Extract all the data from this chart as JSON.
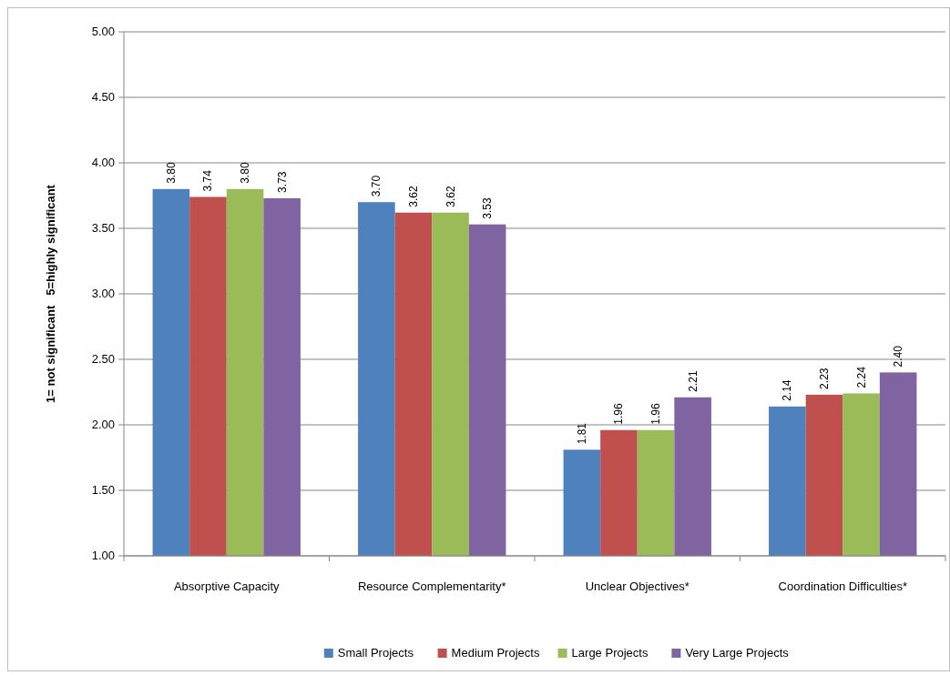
{
  "chart_data": {
    "type": "bar",
    "ylabel": "1= not significant   5=highly significant",
    "categories": [
      "Absorptive Capacity",
      "Resource Complementarity*",
      "Unclear Objectives*",
      "Coordination Difficulties*"
    ],
    "series": [
      {
        "name": "Small Projects",
        "color": "#4f81bd",
        "values": [
          3.8,
          3.7,
          1.81,
          2.14
        ],
        "value_labels": [
          "3.80",
          "3.70",
          "1.81",
          "2.14"
        ]
      },
      {
        "name": "Medium Projects",
        "color": "#c0504d",
        "values": [
          3.74,
          3.62,
          1.96,
          2.23
        ],
        "value_labels": [
          "3.74",
          "3.62",
          "1.96",
          "2.23"
        ]
      },
      {
        "name": "Large Projects",
        "color": "#9bbb59",
        "values": [
          3.8,
          3.62,
          1.96,
          2.24
        ],
        "value_labels": [
          "3.80",
          "3.62",
          "1.96",
          "2.24"
        ]
      },
      {
        "name": "Very Large Projects",
        "color": "#8064a2",
        "values": [
          3.73,
          3.53,
          2.21,
          2.4
        ],
        "value_labels": [
          "3.73",
          "3.53",
          "2.21",
          "2.40"
        ]
      }
    ],
    "ylim": [
      1,
      5
    ],
    "yticks": [
      {
        "value": 1,
        "label": "1.00"
      },
      {
        "value": 1.5,
        "label": "1.50"
      },
      {
        "value": 2,
        "label": "2.00"
      },
      {
        "value": 2.5,
        "label": "2.50"
      },
      {
        "value": 3,
        "label": "3.00"
      },
      {
        "value": 3.5,
        "label": "3.50"
      },
      {
        "value": 4,
        "label": "4.00"
      },
      {
        "value": 4.5,
        "label": "4.50"
      },
      {
        "value": 5,
        "label": "5.00"
      }
    ],
    "grid": "y",
    "legend": "bottom"
  }
}
